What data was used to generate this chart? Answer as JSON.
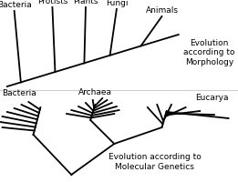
{
  "bg_color": "#ffffff",
  "top_title": "Evolution\naccording to\nMorphology",
  "bottom_title": "Evolution according to\nMolecular Genetics",
  "top_labels": [
    "Bacteria",
    "Protists",
    "Plants",
    "Fungi",
    "Animals"
  ],
  "bottom_labels": [
    "Bacteria",
    "Archaea",
    "Eucarya"
  ],
  "lw": 1.3,
  "font_size": 6.5,
  "title_font_size": 6.5
}
